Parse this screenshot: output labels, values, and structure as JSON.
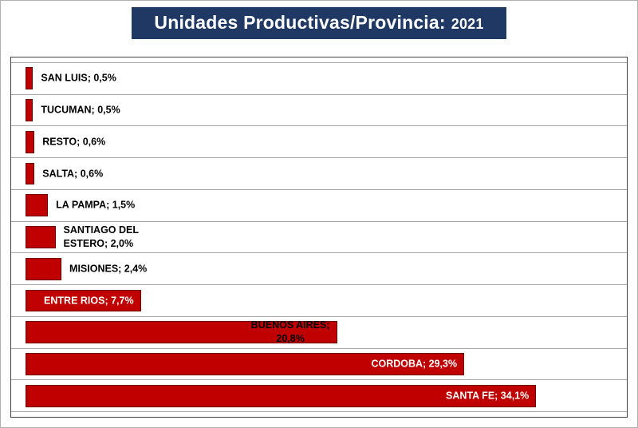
{
  "title": {
    "main": "Unidades Productivas/Provincia:",
    "year": "2021"
  },
  "colors": {
    "bar": "#C00000",
    "bar_border": "#5A0000",
    "title_bg": "#1F3864",
    "title_text": "#FFFFFF",
    "gridline": "#A6A6A6",
    "chart_border": "#404040",
    "label_outside": "#000000",
    "label_inside": "#FFFFFF"
  },
  "chart_data": {
    "type": "bar",
    "orientation": "horizontal",
    "title": "Unidades Productivas/Provincia: 2021",
    "xlabel": "",
    "ylabel": "",
    "xlim": [
      0,
      40
    ],
    "axis_visible": false,
    "legend": "none",
    "gridlines": "category-boundaries",
    "categories": [
      "SAN LUIS",
      "TUCUMAN",
      "RESTO",
      "SALTA",
      "LA PAMPA",
      "SANTIAGO DEL ESTERO",
      "MISIONES",
      "ENTRE RIOS",
      "BUENOS AIRES",
      "CORDOBA",
      "SANTA FE"
    ],
    "values": [
      0.5,
      0.5,
      0.6,
      0.6,
      1.5,
      2.0,
      2.4,
      7.7,
      20.8,
      29.3,
      34.1
    ],
    "items": [
      {
        "category": "SAN LUIS",
        "value": 0.5,
        "label": "SAN LUIS; 0,5%",
        "placement": "outside",
        "label_color": "#000000",
        "align": "left"
      },
      {
        "category": "TUCUMAN",
        "value": 0.5,
        "label": "TUCUMAN; 0,5%",
        "placement": "outside",
        "label_color": "#000000",
        "align": "left"
      },
      {
        "category": "RESTO",
        "value": 0.6,
        "label": "RESTO; 0,6%",
        "placement": "outside",
        "label_color": "#000000",
        "align": "left"
      },
      {
        "category": "SALTA",
        "value": 0.6,
        "label": "SALTA; 0,6%",
        "placement": "outside",
        "label_color": "#000000",
        "align": "left"
      },
      {
        "category": "LA PAMPA",
        "value": 1.5,
        "label": "LA PAMPA; 1,5%",
        "placement": "outside",
        "label_color": "#000000",
        "align": "left"
      },
      {
        "category": "SANTIAGO DEL ESTERO",
        "value": 2.0,
        "label": "SANTIAGO DEL\nESTERO; 2,0%",
        "placement": "outside",
        "label_color": "#000000",
        "align": "left"
      },
      {
        "category": "MISIONES",
        "value": 2.4,
        "label": "MISIONES; 2,4%",
        "placement": "outside",
        "label_color": "#000000",
        "align": "left"
      },
      {
        "category": "ENTRE RIOS",
        "value": 7.7,
        "label": "ENTRE RIOS; 7,7%",
        "placement": "inside",
        "label_color": "#FFFFFF",
        "align": "left"
      },
      {
        "category": "BUENOS AIRES",
        "value": 20.8,
        "label": "BUENOS AIRES;\n20,8%",
        "placement": "inside",
        "label_color": "#000000",
        "align": "center"
      },
      {
        "category": "CORDOBA",
        "value": 29.3,
        "label": "CORDOBA; 29,3%",
        "placement": "inside",
        "label_color": "#FFFFFF",
        "align": "left"
      },
      {
        "category": "SANTA FE",
        "value": 34.1,
        "label": "SANTA FE; 34,1%",
        "placement": "inside",
        "label_color": "#FFFFFF",
        "align": "left"
      }
    ]
  }
}
